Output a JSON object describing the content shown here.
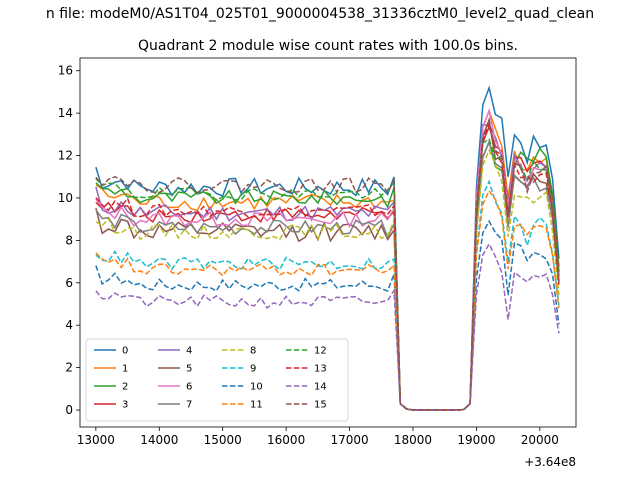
{
  "figure": {
    "suptitle": "n file: modeM0/AS1T04_025T01_9000004538_31336cztM0_level2_quad_clean"
  },
  "chart_data": {
    "type": "line",
    "title": "Quadrant 2 module wise count rates with 100.0s bins.",
    "xlabel": "",
    "ylabel": "",
    "x_offset_label": "+3.64e8",
    "xlim": [
      12750,
      20570
    ],
    "ylim": [
      -0.8,
      16.6
    ],
    "xticks": [
      13000,
      14000,
      15000,
      16000,
      17000,
      18000,
      19000,
      20000
    ],
    "yticks": [
      0,
      2,
      4,
      6,
      8,
      10,
      12,
      14,
      16
    ],
    "grid": false,
    "legend": {
      "placement": "lower-left",
      "columns": 4
    },
    "x_range": [
      13000,
      20300
    ],
    "x_step": 100,
    "series": [
      {
        "name": "0",
        "color": "#1f77b4",
        "dash": "solid",
        "pre": 10.5,
        "peak": 15.2,
        "post": 12.7,
        "var": 0.45
      },
      {
        "name": "1",
        "color": "#ff7f0e",
        "dash": "solid",
        "pre": 9.8,
        "peak": 14.2,
        "post": 11.6,
        "var": 0.4
      },
      {
        "name": "2",
        "color": "#2ca02c",
        "dash": "solid",
        "pre": 10.0,
        "peak": 12.8,
        "post": 12.0,
        "var": 0.35
      },
      {
        "name": "3",
        "color": "#d62728",
        "dash": "solid",
        "pre": 9.2,
        "peak": 13.6,
        "post": 11.8,
        "var": 0.35
      },
      {
        "name": "4",
        "color": "#9467bd",
        "dash": "solid",
        "pre": 9.3,
        "peak": 13.8,
        "post": 11.4,
        "var": 0.4
      },
      {
        "name": "5",
        "color": "#8c564b",
        "dash": "solid",
        "pre": 8.4,
        "peak": 13.3,
        "post": 11.0,
        "var": 0.45
      },
      {
        "name": "6",
        "color": "#e377c2",
        "dash": "solid",
        "pre": 9.0,
        "peak": 13.9,
        "post": 11.2,
        "var": 0.35
      },
      {
        "name": "7",
        "color": "#7f7f7f",
        "dash": "solid",
        "pre": 8.6,
        "peak": 12.5,
        "post": 10.6,
        "var": 0.35
      },
      {
        "name": "8",
        "color": "#bcbd22",
        "dash": "dashed",
        "pre": 8.4,
        "peak": 12.2,
        "post": 10.0,
        "var": 0.35
      },
      {
        "name": "9",
        "color": "#17becf",
        "dash": "dashed",
        "pre": 6.9,
        "peak": 10.8,
        "post": 8.8,
        "var": 0.3
      },
      {
        "name": "10",
        "color": "#1f77b4",
        "dash": "dashed",
        "pre": 5.9,
        "peak": 9.0,
        "post": 7.4,
        "var": 0.3
      },
      {
        "name": "11",
        "color": "#ff7f0e",
        "dash": "dashed",
        "pre": 6.6,
        "peak": 10.5,
        "post": 8.5,
        "var": 0.3
      },
      {
        "name": "12",
        "color": "#2ca02c",
        "dash": "dashed",
        "pre": 10.2,
        "peak": 13.0,
        "post": 11.5,
        "var": 0.3
      },
      {
        "name": "13",
        "color": "#d62728",
        "dash": "dashed",
        "pre": 9.4,
        "peak": 13.2,
        "post": 11.0,
        "var": 0.3
      },
      {
        "name": "14",
        "color": "#9467bd",
        "dash": "dashed",
        "pre": 5.1,
        "peak": 7.6,
        "post": 6.5,
        "var": 0.3
      },
      {
        "name": "15",
        "color": "#8c564b",
        "dash": "dashed",
        "pre": 10.6,
        "peak": 13.5,
        "post": 11.2,
        "var": 0.35
      }
    ]
  }
}
